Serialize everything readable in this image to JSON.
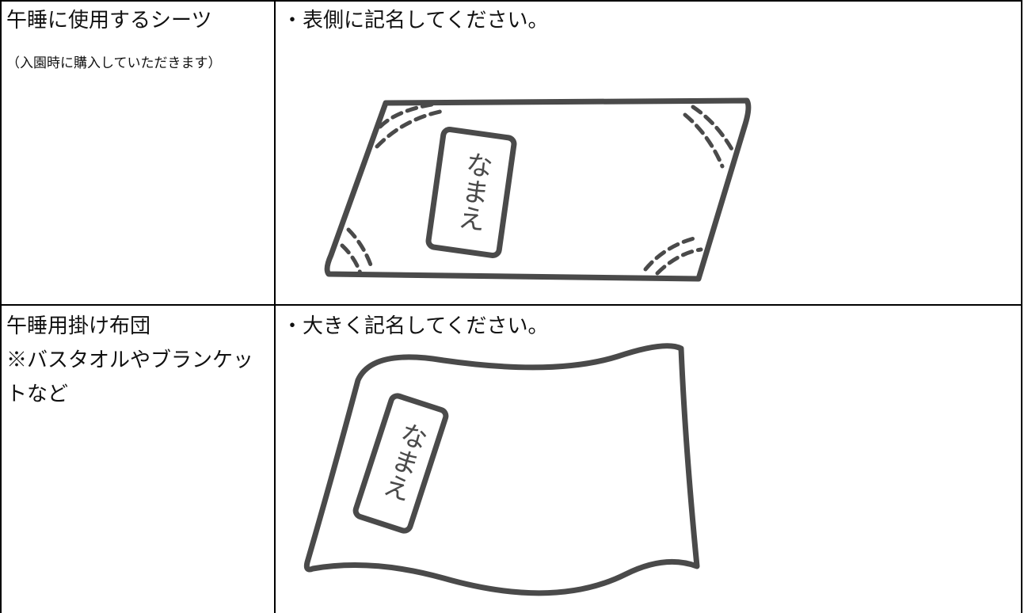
{
  "table": {
    "rows": [
      {
        "item": {
          "name": "午睡に使用するシーツ",
          "note": "（入園時に購入していただきます）"
        },
        "instruction": "・表側に記名してください。",
        "illustration_label": "なまえ"
      },
      {
        "item": {
          "name": "午睡用掛け布団",
          "note": "※バスタオルやブランケットなど"
        },
        "instruction": "・大きく記名してください。",
        "illustration_label": "なまえ"
      }
    ]
  }
}
